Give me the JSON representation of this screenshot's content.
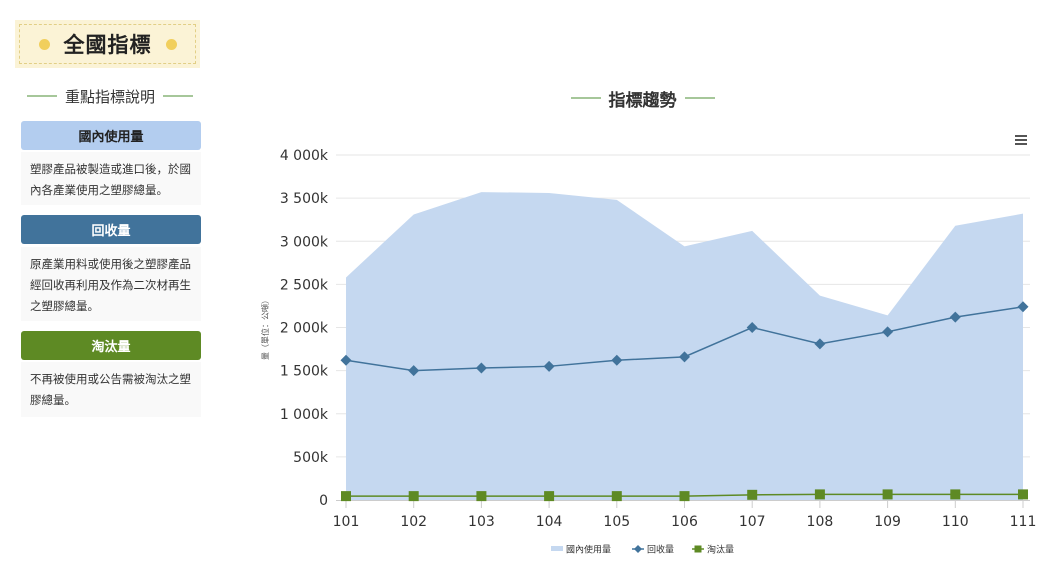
{
  "page_title": "全國指標",
  "sidebar": {
    "heading": "重點指標說明",
    "indicators": [
      {
        "label": "國內使用量",
        "description": "塑膠產品被製造或進口後，於國內各產業使用之塑膠總量。",
        "color": "#b3cdef",
        "text_color": "#222222"
      },
      {
        "label": "回收量",
        "description": "原產業用料或使用後之塑膠產品經回收再利用及作為二次材再生之塑膠總量。",
        "color": "#41739b",
        "text_color": "#ffffff"
      },
      {
        "label": "淘汰量",
        "description": "不再被使用或公告需被淘汰之塑膠總量。",
        "color": "#5e8a24",
        "text_color": "#ffffff"
      }
    ]
  },
  "chart_heading": "指標趨勢",
  "menu_icon": "hamburger-menu-icon",
  "chart_data": {
    "type": "area",
    "title": "",
    "xlabel": "",
    "ylabel": "量（單位：公噸）",
    "categories": [
      "101",
      "102",
      "103",
      "104",
      "105",
      "106",
      "107",
      "108",
      "109",
      "110",
      "111"
    ],
    "ylim": [
      0,
      4000000
    ],
    "yticks": [
      0,
      500000,
      1000000,
      1500000,
      2000000,
      2500000,
      3000000,
      3500000,
      4000000
    ],
    "ytick_labels": [
      "0",
      "500k",
      "1 000k",
      "1 500k",
      "2 000k",
      "2 500k",
      "3 000k",
      "3 500k",
      "4 000k"
    ],
    "grid": true,
    "legend_position": "bottom-center",
    "series": [
      {
        "name": "國內使用量",
        "type": "area",
        "color": "#c5d8f0",
        "values": [
          2580000,
          3310000,
          3570000,
          3560000,
          3480000,
          2940000,
          3120000,
          2370000,
          2140000,
          3180000,
          3320000
        ]
      },
      {
        "name": "回收量",
        "type": "line",
        "marker": "diamond",
        "color": "#41739b",
        "values": [
          1620000,
          1500000,
          1530000,
          1550000,
          1620000,
          1660000,
          2000000,
          1810000,
          1950000,
          2120000,
          2240000
        ]
      },
      {
        "name": "淘汰量",
        "type": "line",
        "marker": "square",
        "color": "#5e8a24",
        "values": [
          45000,
          45000,
          45000,
          45000,
          45000,
          45000,
          60000,
          65000,
          65000,
          65000,
          65000
        ]
      }
    ]
  }
}
